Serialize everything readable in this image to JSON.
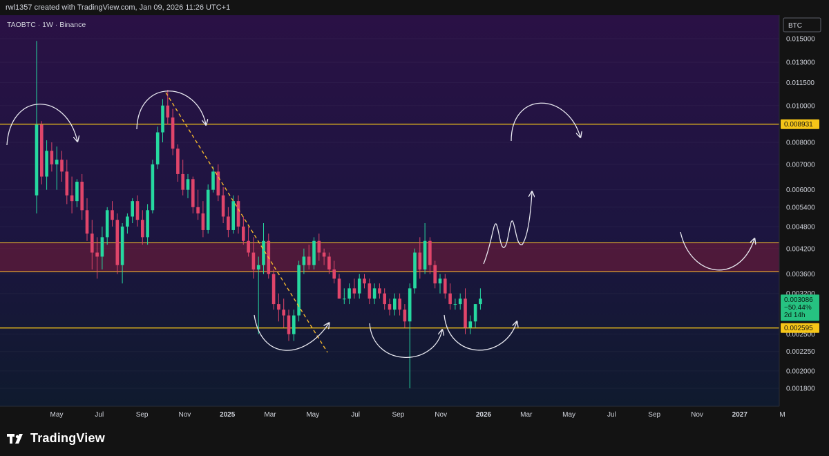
{
  "header": {
    "credit": "rwl1357 created with TradingView.com, Jan 09, 2026 11:26 UTC+1"
  },
  "footer": {
    "brand": "TradingView"
  },
  "colors": {
    "up": "#26d9a0",
    "down": "#e0456a",
    "level": "#f5c518",
    "zone": "#7a1e38",
    "trend": "#f5b82e",
    "drawing": "#e8e8f0",
    "price_tag_bg": "#26c281"
  },
  "chart_data": {
    "type": "candlestick",
    "symbol_label": "TAOBTC · 1W · Binance",
    "currency_label": "BTC",
    "price_scale_ticks": [
      "0.015000",
      "0.013000",
      "0.011500",
      "0.010000",
      "0.008000",
      "0.007000",
      "0.006000",
      "0.005400",
      "0.004800",
      "0.004200",
      "0.003600",
      "0.003200",
      "0.002500",
      "0.002250",
      "0.002000",
      "0.001800"
    ],
    "time_labels": [
      {
        "label": "May",
        "strong": false
      },
      {
        "label": "Jul",
        "strong": false
      },
      {
        "label": "Sep",
        "strong": false
      },
      {
        "label": "Nov",
        "strong": false
      },
      {
        "label": "2025",
        "strong": true
      },
      {
        "label": "Mar",
        "strong": false
      },
      {
        "label": "May",
        "strong": false
      },
      {
        "label": "Jul",
        "strong": false
      },
      {
        "label": "Sep",
        "strong": false
      },
      {
        "label": "Nov",
        "strong": false
      },
      {
        "label": "2026",
        "strong": true
      },
      {
        "label": "Mar",
        "strong": false
      },
      {
        "label": "May",
        "strong": false
      },
      {
        "label": "Jul",
        "strong": false
      },
      {
        "label": "Sep",
        "strong": false
      },
      {
        "label": "Nov",
        "strong": false
      },
      {
        "label": "2027",
        "strong": true
      },
      {
        "label": "M",
        "strong": false
      }
    ],
    "levels": [
      {
        "price": 0.008931,
        "label": "0.008931"
      },
      {
        "price": 0.002595,
        "label": "0.002595"
      }
    ],
    "zone": {
      "low": 0.00365,
      "high": 0.00435
    },
    "last_price": {
      "price": 0.003086,
      "label": "0.003086",
      "change": "−50.44%",
      "countdown": "2d 14h"
    },
    "candles": [
      [
        0.0058,
        0.0148,
        0.0052,
        0.0089
      ],
      [
        0.0089,
        0.0091,
        0.0062,
        0.0065
      ],
      [
        0.0065,
        0.0081,
        0.006,
        0.0076
      ],
      [
        0.0076,
        0.008,
        0.0067,
        0.007
      ],
      [
        0.007,
        0.0078,
        0.006,
        0.0072
      ],
      [
        0.0072,
        0.0076,
        0.0063,
        0.0067
      ],
      [
        0.0067,
        0.0072,
        0.0055,
        0.0058
      ],
      [
        0.0058,
        0.0065,
        0.0052,
        0.0056
      ],
      [
        0.0056,
        0.0064,
        0.0054,
        0.0063
      ],
      [
        0.0063,
        0.0066,
        0.005,
        0.0053
      ],
      [
        0.0053,
        0.0057,
        0.0044,
        0.0046
      ],
      [
        0.0046,
        0.005,
        0.0037,
        0.0041
      ],
      [
        0.0041,
        0.0045,
        0.0035,
        0.004
      ],
      [
        0.004,
        0.0048,
        0.0037,
        0.0045
      ],
      [
        0.0045,
        0.0054,
        0.0043,
        0.0053
      ],
      [
        0.0053,
        0.0056,
        0.0048,
        0.005
      ],
      [
        0.005,
        0.0052,
        0.0036,
        0.0038
      ],
      [
        0.0038,
        0.0049,
        0.0034,
        0.0048
      ],
      [
        0.0048,
        0.0052,
        0.0046,
        0.0051
      ],
      [
        0.0051,
        0.0057,
        0.0049,
        0.0056
      ],
      [
        0.0056,
        0.0058,
        0.0048,
        0.005
      ],
      [
        0.005,
        0.0053,
        0.0043,
        0.0045
      ],
      [
        0.0045,
        0.0055,
        0.0043,
        0.0053
      ],
      [
        0.0053,
        0.0072,
        0.0052,
        0.007
      ],
      [
        0.007,
        0.0088,
        0.0068,
        0.0085
      ],
      [
        0.0085,
        0.0104,
        0.008,
        0.01
      ],
      [
        0.01,
        0.011,
        0.0089,
        0.0093
      ],
      [
        0.0093,
        0.0098,
        0.0074,
        0.0077
      ],
      [
        0.0077,
        0.0079,
        0.0063,
        0.0066
      ],
      [
        0.0066,
        0.0072,
        0.0058,
        0.006
      ],
      [
        0.006,
        0.0066,
        0.0057,
        0.0064
      ],
      [
        0.0064,
        0.0065,
        0.0052,
        0.0054
      ],
      [
        0.0054,
        0.006,
        0.005,
        0.0052
      ],
      [
        0.0052,
        0.0056,
        0.0045,
        0.0047
      ],
      [
        0.0047,
        0.0062,
        0.0046,
        0.006
      ],
      [
        0.006,
        0.0069,
        0.0059,
        0.0067
      ],
      [
        0.0067,
        0.007,
        0.0056,
        0.0058
      ],
      [
        0.0058,
        0.0061,
        0.0049,
        0.0051
      ],
      [
        0.0051,
        0.0054,
        0.0045,
        0.0047
      ],
      [
        0.0047,
        0.0058,
        0.0046,
        0.0056
      ],
      [
        0.0056,
        0.0058,
        0.0046,
        0.0048
      ],
      [
        0.0048,
        0.0051,
        0.0043,
        0.0044
      ],
      [
        0.0044,
        0.0048,
        0.004,
        0.0041
      ],
      [
        0.0041,
        0.0045,
        0.0035,
        0.0037
      ],
      [
        0.0037,
        0.004,
        0.0025,
        0.0038
      ],
      [
        0.0038,
        0.0049,
        0.0036,
        0.0044
      ],
      [
        0.0044,
        0.0046,
        0.0035,
        0.0036
      ],
      [
        0.0036,
        0.0037,
        0.0029,
        0.003
      ],
      [
        0.003,
        0.0032,
        0.0027,
        0.0029
      ],
      [
        0.0029,
        0.0031,
        0.0026,
        0.0028
      ],
      [
        0.0028,
        0.0029,
        0.0024,
        0.0025
      ],
      [
        0.0025,
        0.0029,
        0.0024,
        0.0028
      ],
      [
        0.0028,
        0.0039,
        0.0027,
        0.0038
      ],
      [
        0.0038,
        0.0042,
        0.0036,
        0.004
      ],
      [
        0.004,
        0.0043,
        0.0037,
        0.0038
      ],
      [
        0.0038,
        0.0045,
        0.0037,
        0.0044
      ],
      [
        0.0044,
        0.0046,
        0.0039,
        0.0041
      ],
      [
        0.0041,
        0.0042,
        0.0038,
        0.004
      ],
      [
        0.004,
        0.0041,
        0.0036,
        0.0037
      ],
      [
        0.0037,
        0.0039,
        0.0034,
        0.0035
      ],
      [
        0.0035,
        0.0036,
        0.0031,
        0.0031
      ],
      [
        0.0031,
        0.0033,
        0.003,
        0.0031
      ],
      [
        0.0031,
        0.0034,
        0.003,
        0.0033
      ],
      [
        0.0033,
        0.0035,
        0.0031,
        0.0032
      ],
      [
        0.0032,
        0.0036,
        0.0031,
        0.0035
      ],
      [
        0.0035,
        0.0036,
        0.0033,
        0.0034
      ],
      [
        0.0034,
        0.0035,
        0.003,
        0.0031
      ],
      [
        0.0031,
        0.0034,
        0.003,
        0.0033
      ],
      [
        0.0033,
        0.0034,
        0.0031,
        0.0032
      ],
      [
        0.0032,
        0.0033,
        0.0029,
        0.003
      ],
      [
        0.003,
        0.0031,
        0.0028,
        0.0029
      ],
      [
        0.0029,
        0.0032,
        0.0028,
        0.0031
      ],
      [
        0.0031,
        0.0032,
        0.0028,
        0.0029
      ],
      [
        0.0029,
        0.003,
        0.0026,
        0.0027
      ],
      [
        0.0027,
        0.0034,
        0.0018,
        0.0033
      ],
      [
        0.0033,
        0.0042,
        0.0032,
        0.0041
      ],
      [
        0.0041,
        0.0045,
        0.0035,
        0.0037
      ],
      [
        0.0037,
        0.0049,
        0.0036,
        0.0044
      ],
      [
        0.0044,
        0.0045,
        0.0036,
        0.0038
      ],
      [
        0.0038,
        0.0039,
        0.0033,
        0.0034
      ],
      [
        0.0034,
        0.0036,
        0.0032,
        0.0035
      ],
      [
        0.0035,
        0.0036,
        0.0031,
        0.0032
      ],
      [
        0.0032,
        0.0034,
        0.0029,
        0.003
      ],
      [
        0.003,
        0.0031,
        0.0029,
        0.003
      ],
      [
        0.003,
        0.0032,
        0.0029,
        0.0031
      ],
      [
        0.0031,
        0.0033,
        0.0025,
        0.0026
      ],
      [
        0.0026,
        0.0028,
        0.0025,
        0.0027
      ],
      [
        0.0027,
        0.003,
        0.0026,
        0.003
      ],
      [
        0.003,
        0.0033,
        0.0029,
        0.0031
      ]
    ]
  }
}
